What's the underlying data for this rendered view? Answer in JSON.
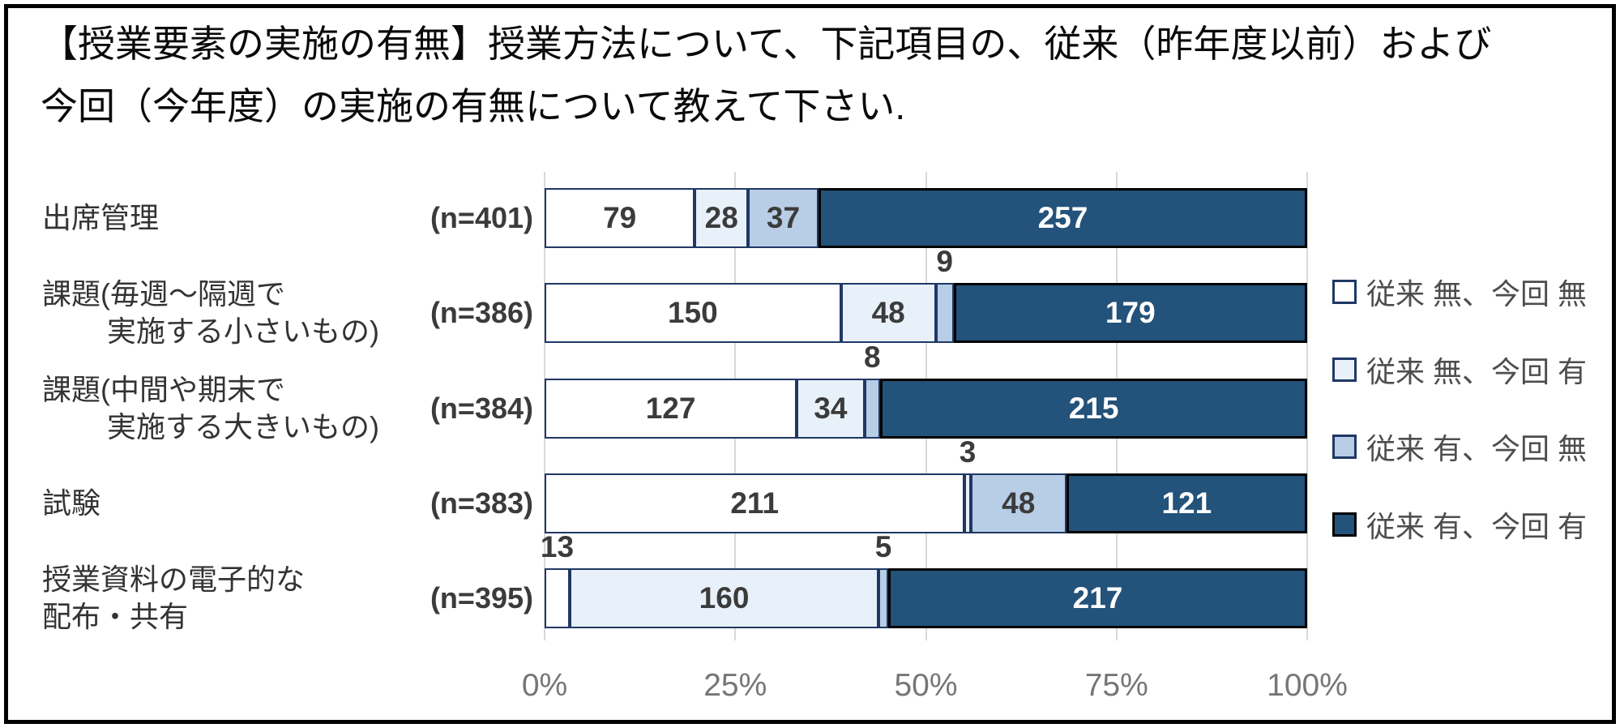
{
  "title": {
    "line1": "【授業要素の実施の有無】授業方法について、下記項目の、従来（昨年度以前）および",
    "line2": "今回（今年度）の実施の有無について教えて下さい."
  },
  "colors": {
    "frame_border": "#000000",
    "gridline": "#d9d9d9",
    "axis_tick_text": "#767676",
    "category_text": "#333333",
    "data_label_dark": "#3b3b3b",
    "data_label_light": "#ffffff",
    "segment_border_navy": "#1f3864",
    "segment_border_black": "#000000"
  },
  "chart_data": {
    "type": "bar",
    "orientation": "horizontal",
    "stacked": true,
    "stacked_as": "percent-of-n",
    "gridlines": true,
    "legend_position": "right",
    "label_outside_threshold_pct": 4,
    "x_axis": {
      "ticks": [
        "0%",
        "25%",
        "50%",
        "75%",
        "100%"
      ],
      "min": 0,
      "max": 100,
      "unit": "percent"
    },
    "categories": [
      {
        "label": "出席管理",
        "lines": [
          "出席管理"
        ],
        "second_line_indent": false,
        "n_label": "(n=401)",
        "n": 401
      },
      {
        "label": "課題(毎週〜隔週で実施する小さいもの)",
        "lines": [
          "課題(毎週〜隔週で",
          "実施する小さいもの)"
        ],
        "second_line_indent": true,
        "n_label": "(n=386)",
        "n": 386
      },
      {
        "label": "課題(中間や期末で実施する大きいもの)",
        "lines": [
          "課題(中間や期末で",
          "実施する大きいもの)"
        ],
        "second_line_indent": true,
        "n_label": "(n=384)",
        "n": 384
      },
      {
        "label": "試験",
        "lines": [
          "試験"
        ],
        "second_line_indent": false,
        "n_label": "(n=383)",
        "n": 383
      },
      {
        "label": "授業資料の電子的な配布・共有",
        "lines": [
          "授業資料の電子的な",
          "配布・共有"
        ],
        "second_line_indent": false,
        "n_label": "(n=395)",
        "n": 395
      }
    ],
    "series": [
      {
        "name": "従来 無、今回 無",
        "fill": "#ffffff",
        "border": "#1f3864",
        "label_color": "#3b3b3b",
        "values": [
          79,
          150,
          127,
          211,
          13
        ]
      },
      {
        "name": "従来 無、今回 有",
        "fill": "#e8f1fa",
        "border": "#1f3864",
        "label_color": "#3b3b3b",
        "values": [
          28,
          48,
          34,
          3,
          160
        ]
      },
      {
        "name": "従来 有、今回 無",
        "fill": "#b8cde6",
        "border": "#1f3864",
        "label_color": "#3b3b3b",
        "values": [
          37,
          9,
          8,
          48,
          5
        ]
      },
      {
        "name": "従来 有、今回 有",
        "fill": "#23527a",
        "border": "#000000",
        "label_color": "#ffffff",
        "values": [
          257,
          179,
          215,
          121,
          217
        ]
      }
    ]
  }
}
